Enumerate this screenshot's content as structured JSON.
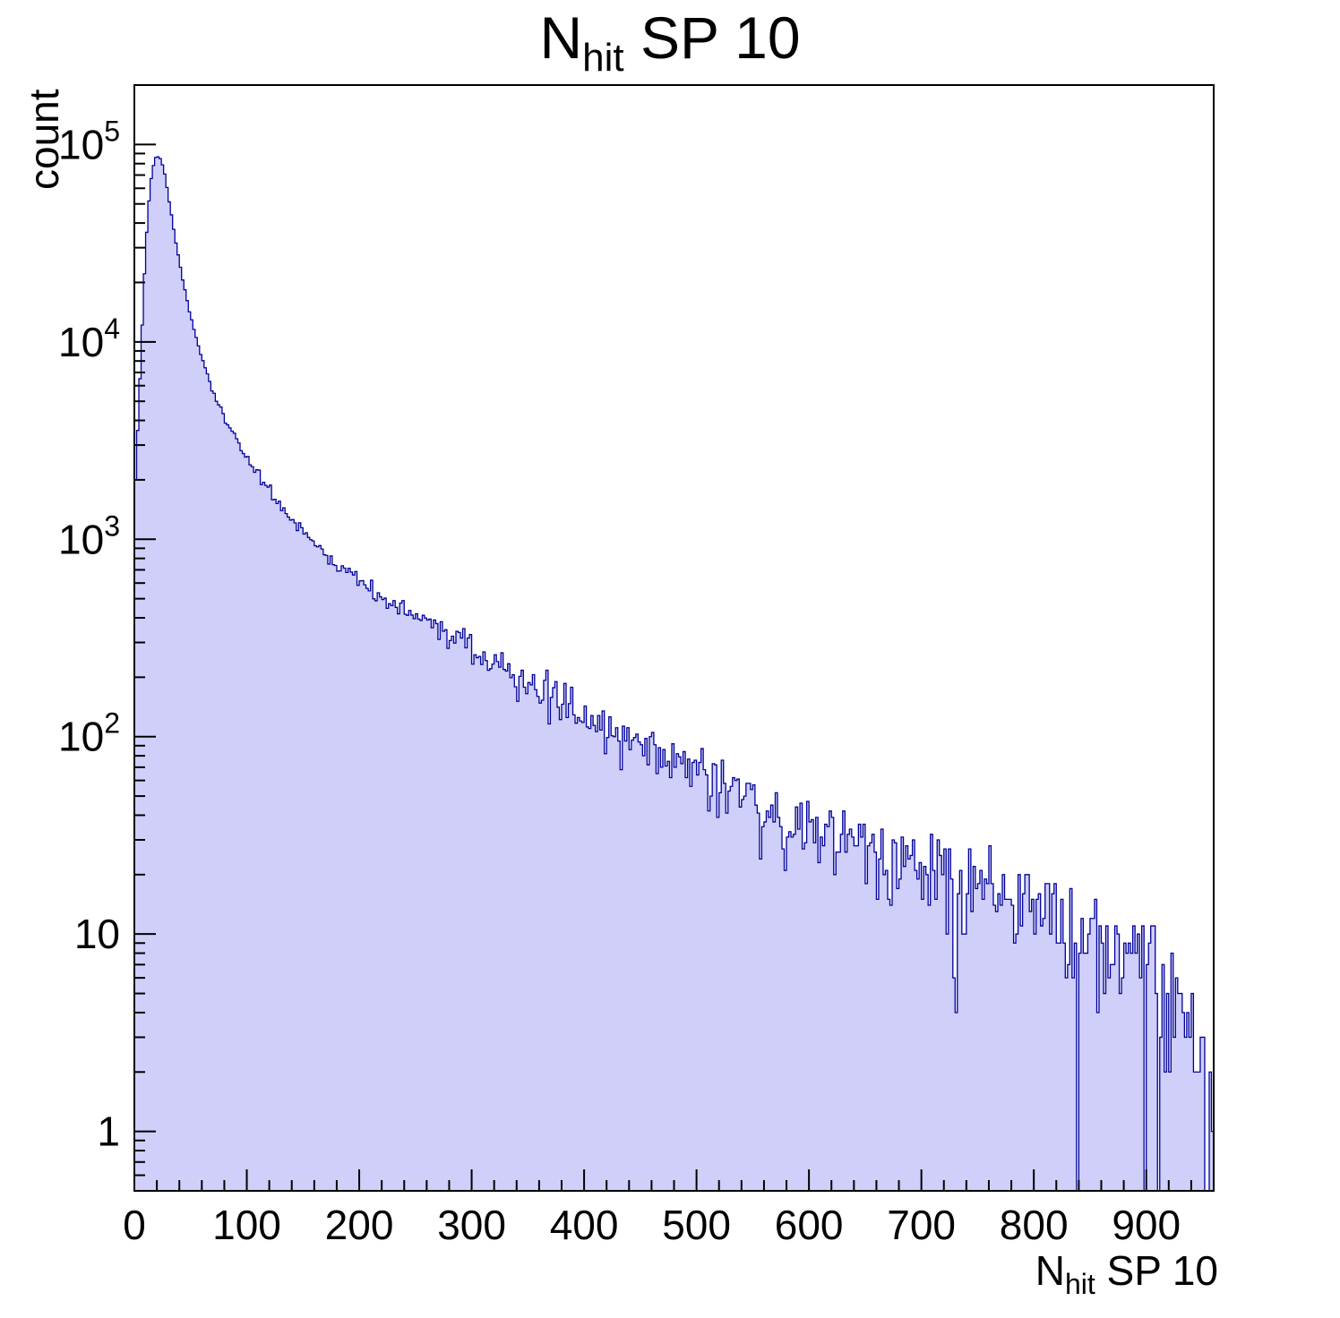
{
  "title": {
    "prefix": "N",
    "sub": "hit",
    "suffix": " SP 10"
  },
  "y_axis": {
    "label": "count"
  },
  "x_axis": {
    "label_prefix": "N",
    "label_sub": "hit",
    "label_suffix": " SP 10"
  },
  "chart_data": {
    "type": "bar",
    "subtype": "histogram-log-y",
    "title": "N_hit SP 10",
    "xlabel": "N_hit SP 10",
    "ylabel": "count",
    "x_range": [
      0,
      960
    ],
    "bin_width": 2,
    "y_scale": "log",
    "y_range": [
      0.5,
      200000
    ],
    "grid": false,
    "legend": "none",
    "peak": {
      "x": 22,
      "count": 88000
    },
    "profile_points": {
      "x": [
        0,
        2,
        6,
        10,
        14,
        18,
        22,
        26,
        30,
        36,
        42,
        50,
        60,
        70,
        80,
        90,
        100,
        120,
        140,
        160,
        180,
        200,
        230,
        260,
        300,
        340,
        380,
        420,
        460,
        500,
        540,
        580,
        620,
        660,
        700,
        740,
        780,
        820,
        860,
        900,
        930,
        950,
        958
      ],
      "count": [
        1600,
        2600,
        9000,
        30000,
        62000,
        85000,
        88000,
        76000,
        56000,
        34000,
        22000,
        13500,
        8200,
        5600,
        4100,
        3200,
        2600,
        1750,
        1250,
        950,
        760,
        620,
        470,
        380,
        275,
        205,
        150,
        112,
        88,
        68,
        50,
        38,
        31,
        26,
        22,
        18,
        14,
        12,
        9.5,
        6.5,
        4.0,
        2.2,
        1.2
      ]
    },
    "noise_factor": 1.3,
    "seed": 20240613,
    "x_major_ticks": [
      0,
      100,
      200,
      300,
      400,
      500,
      600,
      700,
      800,
      900
    ],
    "x_minor_step": 20,
    "y_ticks": [
      {
        "value": 1,
        "base": "1",
        "exp": ""
      },
      {
        "value": 10,
        "base": "10",
        "exp": ""
      },
      {
        "value": 100,
        "base": "10",
        "exp": "2"
      },
      {
        "value": 1000,
        "base": "10",
        "exp": "3"
      },
      {
        "value": 10000,
        "base": "10",
        "exp": "4"
      },
      {
        "value": 100000,
        "base": "10",
        "exp": "5"
      }
    ],
    "colors": {
      "fill": "#cfcff9",
      "line": "#000099",
      "frame": "#000000",
      "text": "#000000"
    }
  }
}
